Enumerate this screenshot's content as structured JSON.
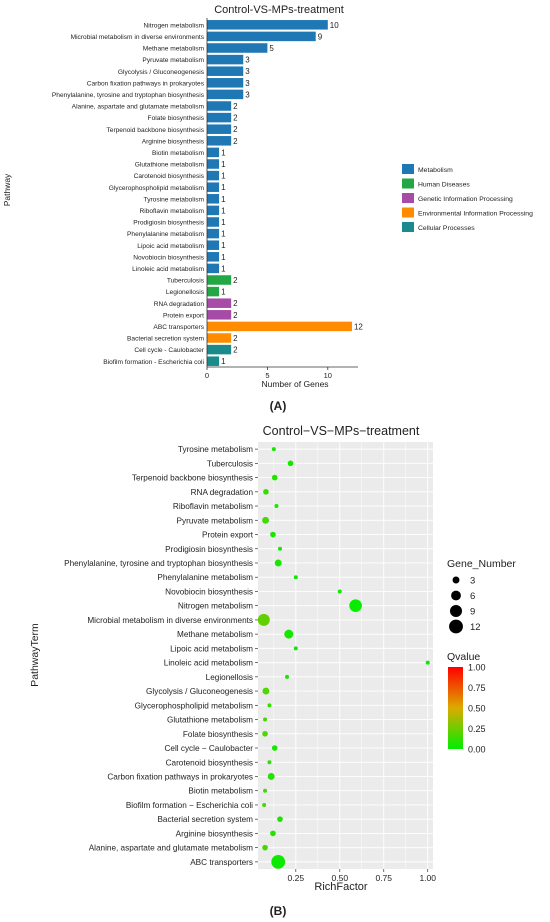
{
  "chart_data": [
    {
      "type": "bar",
      "panel_label": "(A)",
      "title": "Control-VS-MPs-treatment",
      "xlabel": "Number of Genes",
      "ylabel": "Pathway",
      "xlim": [
        0,
        12.5
      ],
      "xticks": [
        0,
        5,
        10
      ],
      "legend": {
        "placement": "right",
        "items": [
          {
            "name": "Metabolism",
            "color": "#1f78b4"
          },
          {
            "name": "Human Diseases",
            "color": "#23a745"
          },
          {
            "name": "Genetic Information Processing",
            "color": "#a64ca6"
          },
          {
            "name": "Environmental Information Processing",
            "color": "#ff8c00"
          },
          {
            "name": "Cellular Processes",
            "color": "#1a8a8a"
          }
        ]
      },
      "bars": [
        {
          "label": "Nitrogen metabolism",
          "value": 10,
          "category": 0
        },
        {
          "label": "Microbial metabolism in diverse environments",
          "value": 9,
          "category": 0
        },
        {
          "label": "Methane metabolism",
          "value": 5,
          "category": 0
        },
        {
          "label": "Pyruvate metabolism",
          "value": 3,
          "category": 0
        },
        {
          "label": "Glycolysis / Gluconeogenesis",
          "value": 3,
          "category": 0
        },
        {
          "label": "Carbon fixation pathways in prokaryotes",
          "value": 3,
          "category": 0
        },
        {
          "label": "Phenylalanine, tyrosine and tryptophan biosynthesis",
          "value": 3,
          "category": 0
        },
        {
          "label": "Alanine, aspartate and glutamate metabolism",
          "value": 2,
          "category": 0
        },
        {
          "label": "Folate biosynthesis",
          "value": 2,
          "category": 0
        },
        {
          "label": "Terpenoid backbone biosynthesis",
          "value": 2,
          "category": 0
        },
        {
          "label": "Arginine biosynthesis",
          "value": 2,
          "category": 0
        },
        {
          "label": "Biotin metabolism",
          "value": 1,
          "category": 0
        },
        {
          "label": "Glutathione metabolism",
          "value": 1,
          "category": 0
        },
        {
          "label": "Carotenoid biosynthesis",
          "value": 1,
          "category": 0
        },
        {
          "label": "Glycerophospholipid metabolism",
          "value": 1,
          "category": 0
        },
        {
          "label": "Tyrosine metabolism",
          "value": 1,
          "category": 0
        },
        {
          "label": "Riboflavin metabolism",
          "value": 1,
          "category": 0
        },
        {
          "label": "Prodigiosin biosynthesis",
          "value": 1,
          "category": 0
        },
        {
          "label": "Phenylalanine metabolism",
          "value": 1,
          "category": 0
        },
        {
          "label": "Lipoic acid metabolism",
          "value": 1,
          "category": 0
        },
        {
          "label": "Novobiocin biosynthesis",
          "value": 1,
          "category": 0
        },
        {
          "label": "Linoleic acid metabolism",
          "value": 1,
          "category": 0
        },
        {
          "label": "Tuberculosis",
          "value": 2,
          "category": 1
        },
        {
          "label": "Legionellosis",
          "value": 1,
          "category": 1
        },
        {
          "label": "RNA degradation",
          "value": 2,
          "category": 2
        },
        {
          "label": "Protein export",
          "value": 2,
          "category": 2
        },
        {
          "label": "ABC transporters",
          "value": 12,
          "category": 3
        },
        {
          "label": "Bacterial secretion system",
          "value": 2,
          "category": 3
        },
        {
          "label": "Cell cycle - Caulobacter",
          "value": 2,
          "category": 4
        },
        {
          "label": "Biofilm formation - Escherichia coli",
          "value": 1,
          "category": 4
        }
      ]
    },
    {
      "type": "scatter",
      "panel_label": "(B)",
      "title": "Control−VS−MPs−treatment",
      "xlabel": "RichFactor",
      "ylabel": "PathwayTerm",
      "xlim": [
        0.035,
        1.03
      ],
      "xticks": [
        0.25,
        0.5,
        0.75,
        1.0
      ],
      "xtick_labels": [
        "0.25",
        "0.50",
        "0.75",
        "1.00"
      ],
      "grid": true,
      "size_legend": {
        "title": "Gene_Number",
        "values": [
          3,
          6,
          9,
          12
        ]
      },
      "color_legend": {
        "title": "Qvalue",
        "min": 0.0,
        "max": 1.0,
        "ticks": [
          "1.00",
          "0.75",
          "0.50",
          "0.25",
          "0.00"
        ],
        "low_color": "#00ee00",
        "high_color": "#ff0000"
      },
      "points": [
        {
          "term": "Tyrosine metabolism",
          "x": 0.125,
          "genes": 1,
          "q": 0.05
        },
        {
          "term": "Tuberculosis",
          "x": 0.22,
          "genes": 2,
          "q": 0.05
        },
        {
          "term": "Terpenoid backbone biosynthesis",
          "x": 0.13,
          "genes": 2,
          "q": 0.08
        },
        {
          "term": "RNA degradation",
          "x": 0.08,
          "genes": 2,
          "q": 0.12
        },
        {
          "term": "Riboflavin metabolism",
          "x": 0.14,
          "genes": 1,
          "q": 0.07
        },
        {
          "term": "Pyruvate metabolism",
          "x": 0.078,
          "genes": 3,
          "q": 0.15
        },
        {
          "term": "Protein export",
          "x": 0.12,
          "genes": 2,
          "q": 0.06
        },
        {
          "term": "Prodigiosin biosynthesis",
          "x": 0.16,
          "genes": 1,
          "q": 0.05
        },
        {
          "term": "Phenylalanine, tyrosine and tryptophan biosynthesis",
          "x": 0.15,
          "genes": 3,
          "q": 0.06
        },
        {
          "term": "Phenylalanine metabolism",
          "x": 0.25,
          "genes": 1,
          "q": 0.05
        },
        {
          "term": "Novobiocin biosynthesis",
          "x": 0.5,
          "genes": 1,
          "q": 0.04
        },
        {
          "term": "Nitrogen metabolism",
          "x": 0.59,
          "genes": 10,
          "q": 0.02
        },
        {
          "term": "Microbial metabolism in diverse environments",
          "x": 0.068,
          "genes": 9,
          "q": 0.22
        },
        {
          "term": "Methane metabolism",
          "x": 0.21,
          "genes": 5,
          "q": 0.05
        },
        {
          "term": "Lipoic acid metabolism",
          "x": 0.25,
          "genes": 1,
          "q": 0.05
        },
        {
          "term": "Linoleic acid metabolism",
          "x": 1.0,
          "genes": 1,
          "q": 0.03
        },
        {
          "term": "Legionellosis",
          "x": 0.2,
          "genes": 1,
          "q": 0.06
        },
        {
          "term": "Glycolysis / Gluconeogenesis",
          "x": 0.08,
          "genes": 3,
          "q": 0.18
        },
        {
          "term": "Glycerophospholipid metabolism",
          "x": 0.1,
          "genes": 1,
          "q": 0.12
        },
        {
          "term": "Glutathione metabolism",
          "x": 0.075,
          "genes": 1,
          "q": 0.14
        },
        {
          "term": "Folate biosynthesis",
          "x": 0.075,
          "genes": 2,
          "q": 0.18
        },
        {
          "term": "Cell cycle − Caulobacter",
          "x": 0.13,
          "genes": 2,
          "q": 0.06
        },
        {
          "term": "Carotenoid biosynthesis",
          "x": 0.1,
          "genes": 1,
          "q": 0.12
        },
        {
          "term": "Carbon fixation pathways in prokaryotes",
          "x": 0.11,
          "genes": 3,
          "q": 0.08
        },
        {
          "term": "Biotin metabolism",
          "x": 0.075,
          "genes": 1,
          "q": 0.14
        },
        {
          "term": "Biofilm formation − Escherichia coli",
          "x": 0.07,
          "genes": 1,
          "q": 0.15
        },
        {
          "term": "Bacterial secretion system",
          "x": 0.16,
          "genes": 2,
          "q": 0.07
        },
        {
          "term": "Arginine biosynthesis",
          "x": 0.12,
          "genes": 2,
          "q": 0.08
        },
        {
          "term": "Alanine, aspartate and glutamate metabolism",
          "x": 0.075,
          "genes": 2,
          "q": 0.16
        },
        {
          "term": "ABC transporters",
          "x": 0.15,
          "genes": 12,
          "q": 0.03
        }
      ]
    }
  ]
}
